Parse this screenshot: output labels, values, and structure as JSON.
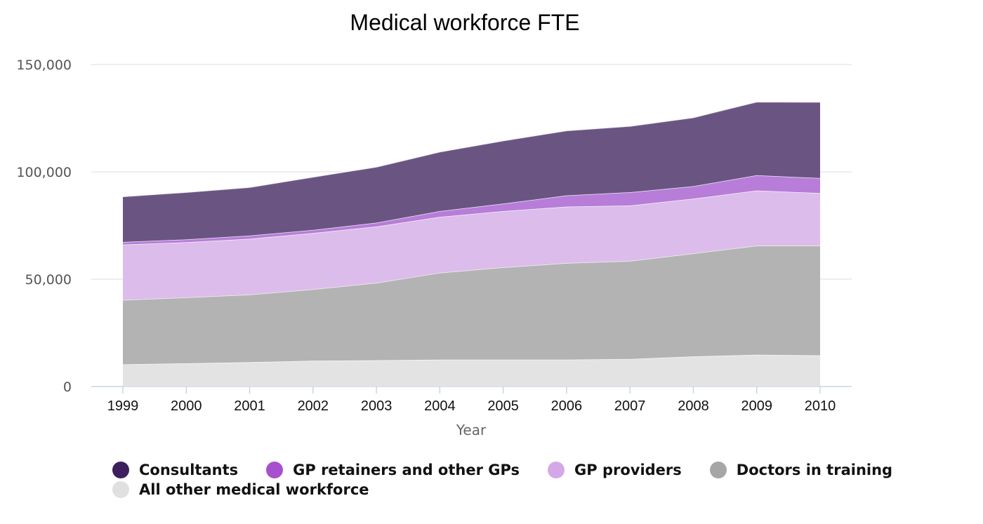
{
  "chart_data": {
    "type": "area",
    "stacked": true,
    "title": "Medical workforce FTE",
    "xlabel": "Year",
    "ylabel": "",
    "ylim": [
      0,
      150000
    ],
    "yticks": [
      0,
      50000,
      100000,
      150000
    ],
    "ytick_labels": [
      "0",
      "50,000",
      "100,000",
      "150,000"
    ],
    "categories": [
      "1999",
      "2000",
      "2001",
      "2002",
      "2003",
      "2004",
      "2005",
      "2006",
      "2007",
      "2008",
      "2009",
      "2010"
    ],
    "grid": true,
    "legend_position": "bottom",
    "series": [
      {
        "name": "All other medical workforce",
        "color": "#e3e3e3",
        "values": [
          10300,
          10800,
          11300,
          12000,
          12200,
          12500,
          12500,
          12500,
          12800,
          14000,
          14800,
          14500
        ]
      },
      {
        "name": "Doctors in training",
        "color": "#b3b3b3",
        "values": [
          30000,
          30700,
          31500,
          33300,
          36100,
          40500,
          43000,
          45000,
          45700,
          48000,
          50800,
          51100
        ]
      },
      {
        "name": "GP providers",
        "color": "#dcbcea",
        "values": [
          25800,
          25700,
          26000,
          26200,
          26200,
          26000,
          26200,
          26300,
          25800,
          25500,
          25700,
          24500
        ]
      },
      {
        "name": "GP retainers and other GPs",
        "color": "#b77dd9",
        "values": [
          1200,
          1300,
          1500,
          1400,
          1800,
          2700,
          3500,
          5200,
          6200,
          5800,
          7100,
          7000
        ]
      },
      {
        "name": "Consultants",
        "color": "#6a5582",
        "values": [
          21200,
          22000,
          22500,
          24700,
          26000,
          27600,
          29300,
          30200,
          30800,
          32000,
          34200,
          35400
        ]
      }
    ],
    "legend_order": [
      "Consultants",
      "GP retainers and other GPs",
      "GP providers",
      "Doctors in training",
      "All other medical workforce"
    ],
    "legend_colors": {
      "Consultants": "#3c1f5c",
      "GP retainers and other GPs": "#a84fd0",
      "GP providers": "#d4a8e6",
      "Doctors in training": "#a6a6a6",
      "All other medical workforce": "#e0e0e0"
    }
  }
}
